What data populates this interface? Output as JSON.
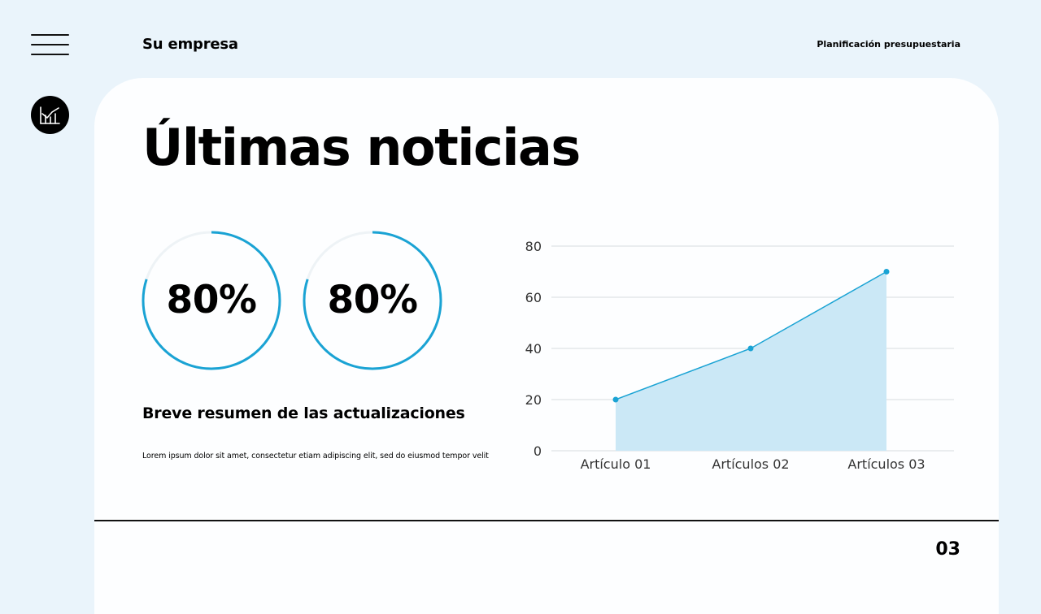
{
  "header": {
    "company": "Su empresa",
    "subtitle": "Planificación presupuestaria"
  },
  "main": {
    "title": "Últimas noticias",
    "gauges": [
      {
        "label": "80%",
        "value": 80
      },
      {
        "label": "80%",
        "value": 80
      }
    ],
    "summary_heading": "Breve resumen de las actualizaciones",
    "summary_text": "Lorem ipsum dolor sit amet, consectetur etiam adipiscing elit, sed do eiusmod tempor velit"
  },
  "footer": {
    "page_number": "03"
  },
  "colors": {
    "accent": "#1aa3d4",
    "area_fill": "#cbe8f6",
    "background": "#eaf4fb",
    "card": "#fdfeff"
  },
  "icons": {
    "menu": "hamburger-menu-icon",
    "logo": "bar-chart-logo-icon"
  },
  "chart_data": {
    "type": "area",
    "categories": [
      "Artículo 01",
      "Artículos 02",
      "Artículos 03"
    ],
    "values": [
      20,
      40,
      70
    ],
    "ylim": [
      0,
      80
    ],
    "yticks": [
      "0",
      "20",
      "40",
      "60",
      "80"
    ],
    "grid": true,
    "title": "",
    "xlabel": "",
    "ylabel": ""
  }
}
